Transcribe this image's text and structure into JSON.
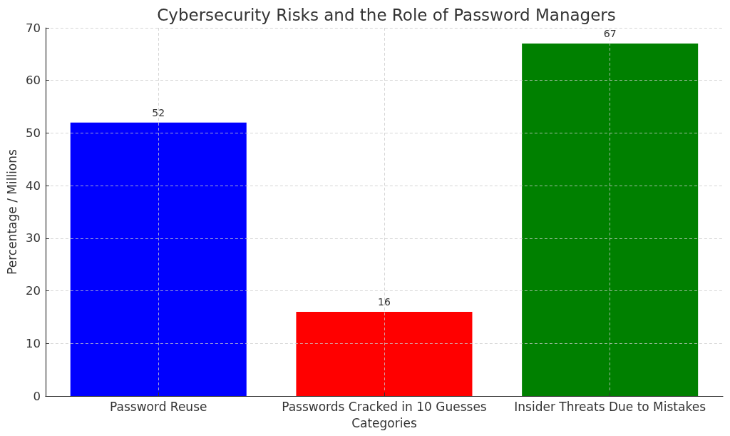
{
  "chart_data": {
    "type": "bar",
    "title": "Cybersecurity Risks and the Role of Password Managers",
    "xlabel": "Categories",
    "ylabel": "Percentage / Millions",
    "categories": [
      "Password Reuse",
      "Passwords Cracked in 10 Guesses",
      "Insider Threats Due to Mistakes"
    ],
    "values": [
      52,
      16,
      67
    ],
    "colors": [
      "#0000ff",
      "#ff0000",
      "#008000"
    ],
    "ylim": [
      0,
      70
    ],
    "yticks": [
      0,
      10,
      20,
      30,
      40,
      50,
      60,
      70
    ],
    "grid": true,
    "data_labels": true
  }
}
